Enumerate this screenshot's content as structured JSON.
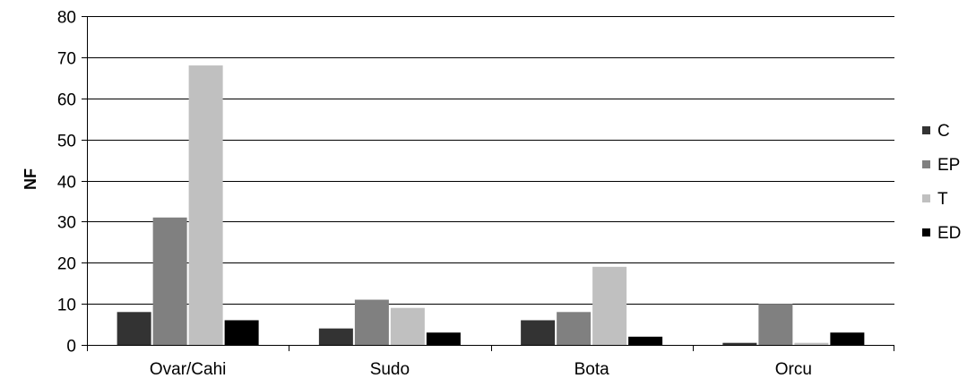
{
  "chart_data": {
    "type": "bar",
    "title": "",
    "xlabel": "",
    "ylabel": "NF",
    "ylim": [
      0,
      80
    ],
    "yticks": [
      0,
      10,
      20,
      30,
      40,
      50,
      60,
      70,
      80
    ],
    "grid": true,
    "legend_position": "right",
    "categories": [
      "Ovar/Cahi",
      "Sudo",
      "Bota",
      "Orcu"
    ],
    "series": [
      {
        "name": "C",
        "color": "#333333",
        "values": [
          8,
          4,
          6,
          0.5
        ]
      },
      {
        "name": "EP",
        "color": "#808080",
        "values": [
          31,
          11,
          8,
          10
        ]
      },
      {
        "name": "T",
        "color": "#c0c0c0",
        "values": [
          68,
          9,
          19,
          0.5
        ]
      },
      {
        "name": "ED",
        "color": "#000000",
        "values": [
          6,
          3,
          2,
          3
        ]
      }
    ]
  }
}
